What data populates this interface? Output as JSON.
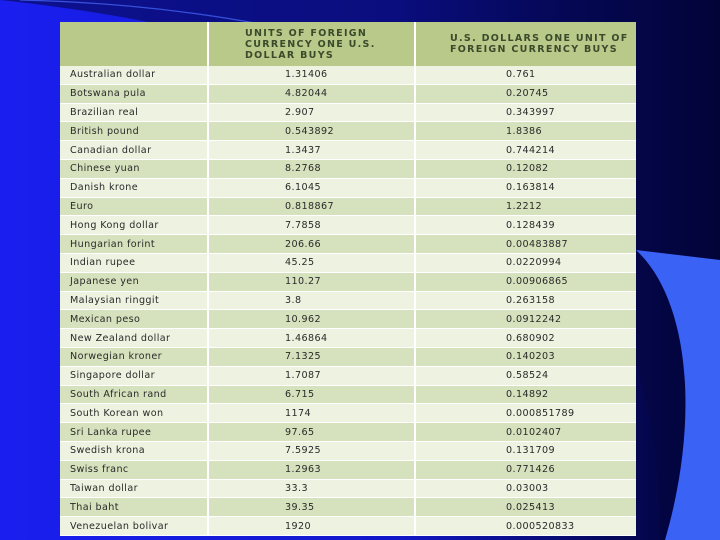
{
  "table": {
    "headers": [
      "",
      "UNITS OF FOREIGN CURRENCY ONE U.S. DOLLAR BUYS",
      "U.S. DOLLARS ONE UNIT OF FOREIGN CURRENCY BUYS"
    ],
    "rows": [
      [
        "Australian dollar",
        "1.31406",
        "0.761"
      ],
      [
        "Botswana pula",
        "4.82044",
        "0.20745"
      ],
      [
        "Brazilian real",
        "2.907",
        "0.343997"
      ],
      [
        "British pound",
        "0.543892",
        "1.8386"
      ],
      [
        "Canadian dollar",
        "1.3437",
        "0.744214"
      ],
      [
        "Chinese yuan",
        "8.2768",
        "0.12082"
      ],
      [
        "Danish krone",
        "6.1045",
        "0.163814"
      ],
      [
        "Euro",
        "0.818867",
        "1.2212"
      ],
      [
        "Hong Kong dollar",
        "7.7858",
        "0.128439"
      ],
      [
        "Hungarian forint",
        "206.66",
        "0.00483887"
      ],
      [
        "Indian rupee",
        "45.25",
        "0.0220994"
      ],
      [
        "Japanese yen",
        "110.27",
        "0.00906865"
      ],
      [
        "Malaysian ringgit",
        "3.8",
        "0.263158"
      ],
      [
        "Mexican peso",
        "10.962",
        "0.0912242"
      ],
      [
        "New Zealand dollar",
        "1.46864",
        "0.680902"
      ],
      [
        "Norwegian kroner",
        "7.1325",
        "0.140203"
      ],
      [
        "Singapore dollar",
        "1.7087",
        "0.58524"
      ],
      [
        "South African rand",
        "6.715",
        "0.14892"
      ],
      [
        "South Korean won",
        "1174",
        "0.000851789"
      ],
      [
        "Sri Lanka rupee",
        "97.65",
        "0.0102407"
      ],
      [
        "Swedish krona",
        "7.5925",
        "0.131709"
      ],
      [
        "Swiss franc",
        "1.2963",
        "0.771426"
      ],
      [
        "Taiwan dollar",
        "33.3",
        "0.03003"
      ],
      [
        "Thai baht",
        "39.35",
        "0.025413"
      ],
      [
        "Venezuelan bolivar",
        "1920",
        "0.000520833"
      ]
    ]
  },
  "colors": {
    "header_bg": "#b9c98a",
    "row_light": "#eef2e0",
    "row_dark": "#d6e2bd",
    "slide_blue": "#1a1ff0",
    "slide_accent": "#3b62f5"
  }
}
